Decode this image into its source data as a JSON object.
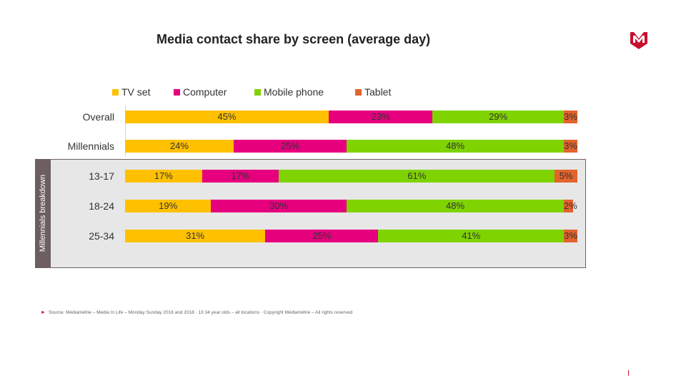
{
  "title": "Media contact share by screen (average day)",
  "breakdown_label": "Millennials breakdown",
  "source": "Source: Médiamétrie – Media In Life – Monday Sunday 2016 and 2018 · 13 34 year olds – all locations · Copyright Médiamétrie – All rights reserved",
  "chart_data": {
    "type": "bar",
    "orientation": "horizontal",
    "stacked": true,
    "percent": true,
    "xlim": [
      0,
      100
    ],
    "categories": [
      "Overall",
      "Millennials",
      "13-17",
      "18-24",
      "25-34"
    ],
    "series": [
      {
        "name": "TV set",
        "color": "#ffc000",
        "values": [
          45,
          24,
          17,
          19,
          31
        ]
      },
      {
        "name": "Computer",
        "color": "#e6007e",
        "values": [
          23,
          25,
          17,
          30,
          25
        ]
      },
      {
        "name": "Mobile phone",
        "color": "#7fd300",
        "values": [
          29,
          48,
          61,
          48,
          41
        ]
      },
      {
        "name": "Tablet",
        "color": "#e3632d",
        "values": [
          3,
          3,
          5,
          2,
          3
        ]
      }
    ],
    "data_labels": [
      [
        "45%",
        "23%",
        "29%",
        "3%"
      ],
      [
        "24%",
        "25%",
        "48%",
        "3%"
      ],
      [
        "17%",
        "17%",
        "61%",
        "5%"
      ],
      [
        "19%",
        "30%",
        "48%",
        "2%"
      ],
      [
        "31%",
        "25%",
        "41%",
        "3%"
      ]
    ],
    "legend_position": "top",
    "grid": false
  }
}
